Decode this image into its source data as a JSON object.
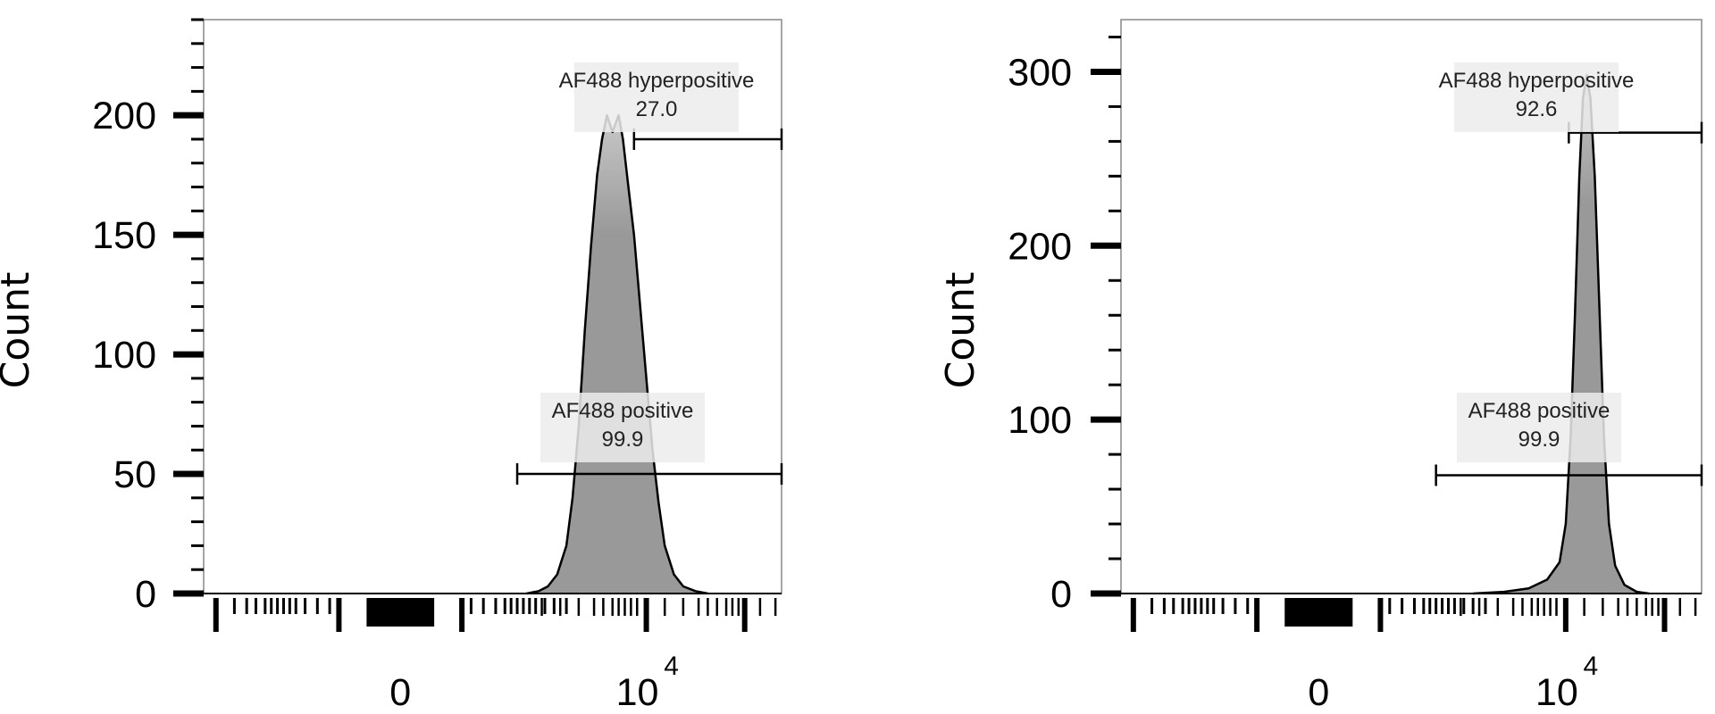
{
  "chart_data": [
    {
      "type": "area",
      "title": "",
      "ylabel": "Count",
      "xlabel": "",
      "x_scale": "biexponential",
      "x_tick_labels": [
        {
          "value": 0,
          "base": "0",
          "exponent": ""
        },
        {
          "value": 10000,
          "base": "10",
          "exponent": "4"
        }
      ],
      "ylim": [
        0,
        240
      ],
      "y_ticks": [
        0,
        50,
        100,
        150,
        200
      ],
      "x_range_decades": [
        -3.2,
        6.2
      ],
      "series": [
        {
          "values": [
            {
              "x": 2.05,
              "y": 0
            },
            {
              "x": 2.25,
              "y": 1
            },
            {
              "x": 2.4,
              "y": 3
            },
            {
              "x": 2.55,
              "y": 8
            },
            {
              "x": 2.7,
              "y": 20
            },
            {
              "x": 2.8,
              "y": 40
            },
            {
              "x": 2.9,
              "y": 70
            },
            {
              "x": 3.0,
              "y": 110
            },
            {
              "x": 3.1,
              "y": 145
            },
            {
              "x": 3.2,
              "y": 175
            },
            {
              "x": 3.28,
              "y": 190
            },
            {
              "x": 3.36,
              "y": 200
            },
            {
              "x": 3.45,
              "y": 193
            },
            {
              "x": 3.55,
              "y": 200
            },
            {
              "x": 3.62,
              "y": 190
            },
            {
              "x": 3.7,
              "y": 172
            },
            {
              "x": 3.8,
              "y": 150
            },
            {
              "x": 3.9,
              "y": 120
            },
            {
              "x": 4.0,
              "y": 90
            },
            {
              "x": 4.1,
              "y": 60
            },
            {
              "x": 4.2,
              "y": 38
            },
            {
              "x": 4.3,
              "y": 20
            },
            {
              "x": 4.45,
              "y": 8
            },
            {
              "x": 4.6,
              "y": 3
            },
            {
              "x": 4.8,
              "y": 1
            },
            {
              "x": 5.0,
              "y": 0
            }
          ]
        }
      ],
      "gates": [
        {
          "name": "AF488 hyperpositive",
          "value": "27.0",
          "x_start": 3.8,
          "x_end": 6.2,
          "y": 190
        },
        {
          "name": "AF488 positive",
          "value": "99.9",
          "x_start": 1.9,
          "x_end": 6.2,
          "y": 50
        }
      ]
    },
    {
      "type": "area",
      "title": "",
      "ylabel": "Count",
      "xlabel": "",
      "x_scale": "biexponential",
      "x_tick_labels": [
        {
          "value": 0,
          "base": "0",
          "exponent": ""
        },
        {
          "value": 10000,
          "base": "10",
          "exponent": "4"
        }
      ],
      "ylim": [
        0,
        330
      ],
      "y_ticks": [
        0,
        100,
        200,
        300
      ],
      "x_range_decades": [
        -3.2,
        6.2
      ],
      "series": [
        {
          "values": [
            {
              "x": 2.5,
              "y": 0
            },
            {
              "x": 3.0,
              "y": 1
            },
            {
              "x": 3.4,
              "y": 3
            },
            {
              "x": 3.7,
              "y": 8
            },
            {
              "x": 3.9,
              "y": 18
            },
            {
              "x": 4.0,
              "y": 40
            },
            {
              "x": 4.08,
              "y": 90
            },
            {
              "x": 4.15,
              "y": 160
            },
            {
              "x": 4.22,
              "y": 240
            },
            {
              "x": 4.28,
              "y": 285
            },
            {
              "x": 4.34,
              "y": 298
            },
            {
              "x": 4.4,
              "y": 285
            },
            {
              "x": 4.47,
              "y": 240
            },
            {
              "x": 4.55,
              "y": 160
            },
            {
              "x": 4.62,
              "y": 90
            },
            {
              "x": 4.7,
              "y": 40
            },
            {
              "x": 4.8,
              "y": 16
            },
            {
              "x": 4.95,
              "y": 5
            },
            {
              "x": 5.15,
              "y": 1
            },
            {
              "x": 5.35,
              "y": 0
            }
          ]
        }
      ],
      "gates": [
        {
          "name": "AF488 hyperpositive",
          "value": "92.6",
          "x_start": 4.05,
          "x_end": 6.2,
          "y": 265
        },
        {
          "name": "AF488 positive",
          "value": "99.9",
          "x_start": 1.9,
          "x_end": 6.2,
          "y": 68
        }
      ]
    }
  ],
  "colors": {
    "fill": "#999999",
    "fill_top": "#c8c8c8",
    "outline": "#000000",
    "frame": "#888888",
    "label_bg": "#ececec"
  }
}
